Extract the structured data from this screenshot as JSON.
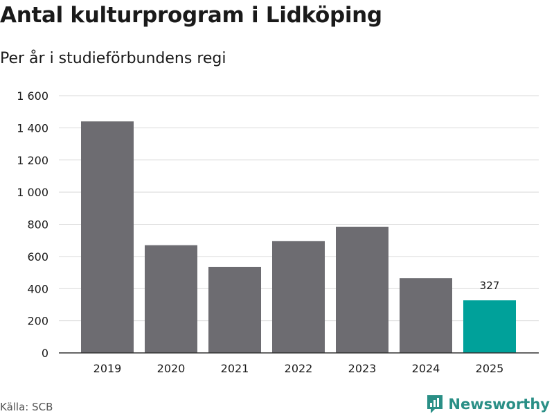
{
  "header": {
    "title": "Antal kulturprogram i Lidköping",
    "subtitle": "Per år i studieförbundens regi"
  },
  "footer": {
    "source": "Källa: SCB",
    "brand": "Newsworthy"
  },
  "colors": {
    "bar": "#6d6c71",
    "highlight": "#00a19a",
    "grid": "#d9d9d9",
    "axis": "#333333",
    "brand": "#2a8f86"
  },
  "chart_data": {
    "type": "bar",
    "title": "Antal kulturprogram i Lidköping",
    "subtitle": "Per år i studieförbundens regi",
    "xlabel": "",
    "ylabel": "",
    "categories": [
      "2019",
      "2020",
      "2021",
      "2022",
      "2023",
      "2024",
      "2025"
    ],
    "values": [
      1440,
      670,
      535,
      695,
      785,
      465,
      327
    ],
    "highlight_index": 6,
    "data_labels": [
      {
        "index": 6,
        "text": "327"
      }
    ],
    "ylim": [
      0,
      1600
    ],
    "yticks": [
      0,
      200,
      400,
      600,
      800,
      1000,
      1200,
      1400,
      1600
    ],
    "ytick_labels": [
      "0",
      "200",
      "400",
      "600",
      "800",
      "1 000",
      "1 200",
      "1 400",
      "1 600"
    ],
    "grid": true,
    "legend": "none"
  }
}
